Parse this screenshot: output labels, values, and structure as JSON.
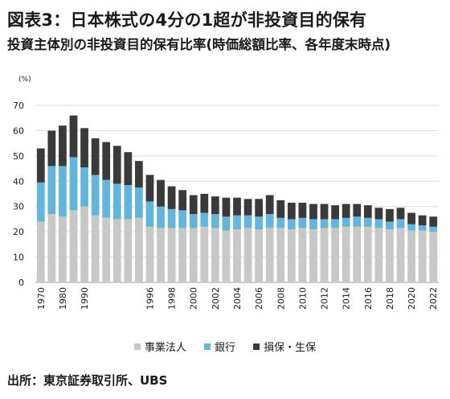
{
  "title": "図表3：日本株式の4分の1超が非投資目的保有",
  "subtitle": "投資主体別の非投資目的保有比率(時価総額比率、各年度末時点)",
  "source": "出所：東京証券取引所、UBS",
  "chart_data": {
    "type": "bar",
    "stacked": true,
    "unit": "(%)",
    "ylim": [
      0,
      70
    ],
    "yticks": [
      0,
      10,
      20,
      30,
      40,
      50,
      60,
      70
    ],
    "grid": true,
    "legend_position": "bottom",
    "categories": [
      1970,
      1975,
      1980,
      1985,
      1990,
      1991,
      1992,
      1993,
      1994,
      1995,
      1996,
      1997,
      1998,
      1999,
      2000,
      2001,
      2002,
      2003,
      2004,
      2005,
      2006,
      2007,
      2008,
      2009,
      2010,
      2011,
      2012,
      2013,
      2014,
      2015,
      2016,
      2017,
      2018,
      2019,
      2020,
      2021,
      2022
    ],
    "xtick_labels": [
      "1970",
      "1980",
      "1990",
      "1996",
      "1998",
      "2000",
      "2002",
      "2004",
      "2006",
      "2008",
      "2010",
      "2012",
      "2014",
      "2016",
      "2018",
      "2020",
      "2022"
    ],
    "series": [
      {
        "name": "事業法人",
        "color": "#c8c8c8",
        "values": [
          24.0,
          27.0,
          26.0,
          28.5,
          30.0,
          26.5,
          25.5,
          25.0,
          25.0,
          25.5,
          22.0,
          21.5,
          21.5,
          21.5,
          21.5,
          22.0,
          21.5,
          20.5,
          21.0,
          21.5,
          21.0,
          21.5,
          21.5,
          21.0,
          21.5,
          21.0,
          21.5,
          21.5,
          22.0,
          22.0,
          22.0,
          21.5,
          21.0,
          21.5,
          20.5,
          20.5,
          20.0
        ]
      },
      {
        "name": "銀行",
        "color": "#64b4dc",
        "values": [
          15.5,
          19.0,
          20.0,
          21.0,
          15.5,
          16.0,
          15.0,
          14.0,
          13.5,
          12.0,
          10.0,
          8.5,
          7.5,
          7.0,
          5.5,
          5.5,
          5.5,
          5.5,
          5.5,
          5.0,
          5.0,
          5.5,
          4.0,
          4.0,
          4.0,
          4.0,
          3.5,
          3.5,
          3.5,
          4.0,
          3.5,
          3.5,
          3.0,
          3.5,
          2.5,
          2.0,
          2.0
        ]
      },
      {
        "name": "損保・生保",
        "color": "#3a3a3a",
        "values": [
          13.5,
          14.0,
          16.0,
          16.5,
          15.5,
          14.5,
          15.0,
          15.0,
          13.0,
          10.5,
          10.5,
          10.5,
          9.0,
          8.0,
          7.5,
          7.5,
          7.0,
          7.5,
          7.0,
          6.5,
          7.0,
          7.5,
          7.0,
          6.5,
          6.0,
          6.0,
          6.0,
          5.5,
          5.5,
          5.0,
          5.0,
          4.5,
          5.0,
          4.5,
          4.5,
          4.0,
          4.0
        ]
      }
    ]
  }
}
